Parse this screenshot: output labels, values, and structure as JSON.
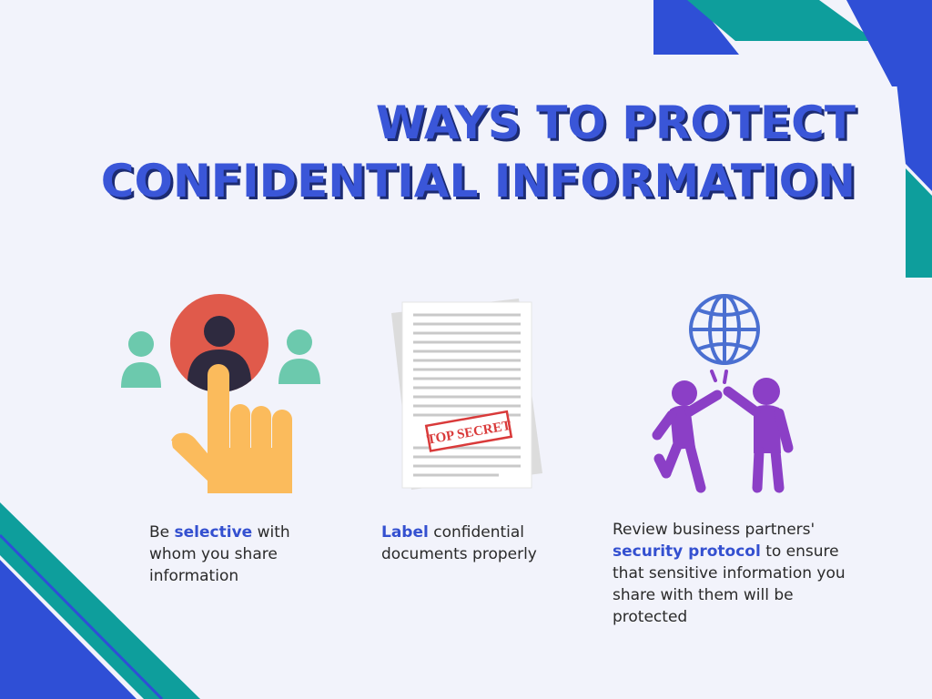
{
  "title": {
    "line1": "WAYS TO PROTECT",
    "line2": "CONFIDENTIAL INFORMATION"
  },
  "colors": {
    "background": "#f2f3fb",
    "title": "#3a56d8",
    "title_shadow": "#1c2b73",
    "highlight": "#3450d0",
    "teal": "#0e9e9c",
    "blue": "#2f4fd6"
  },
  "items": [
    {
      "icon": "select-person-pointer-icon",
      "pre": "Be ",
      "highlight": "selective",
      "post": " with whom you share information"
    },
    {
      "icon": "top-secret-document-icon",
      "stamp": "TOP SECRET",
      "pre": "",
      "highlight": "Label",
      "post": " confidential documents properly"
    },
    {
      "icon": "globe-partners-high-five-icon",
      "pre": "Review business partners' ",
      "highlight": "security protocol",
      "post": " to ensure that sensitive information you share with them will be protected"
    }
  ]
}
